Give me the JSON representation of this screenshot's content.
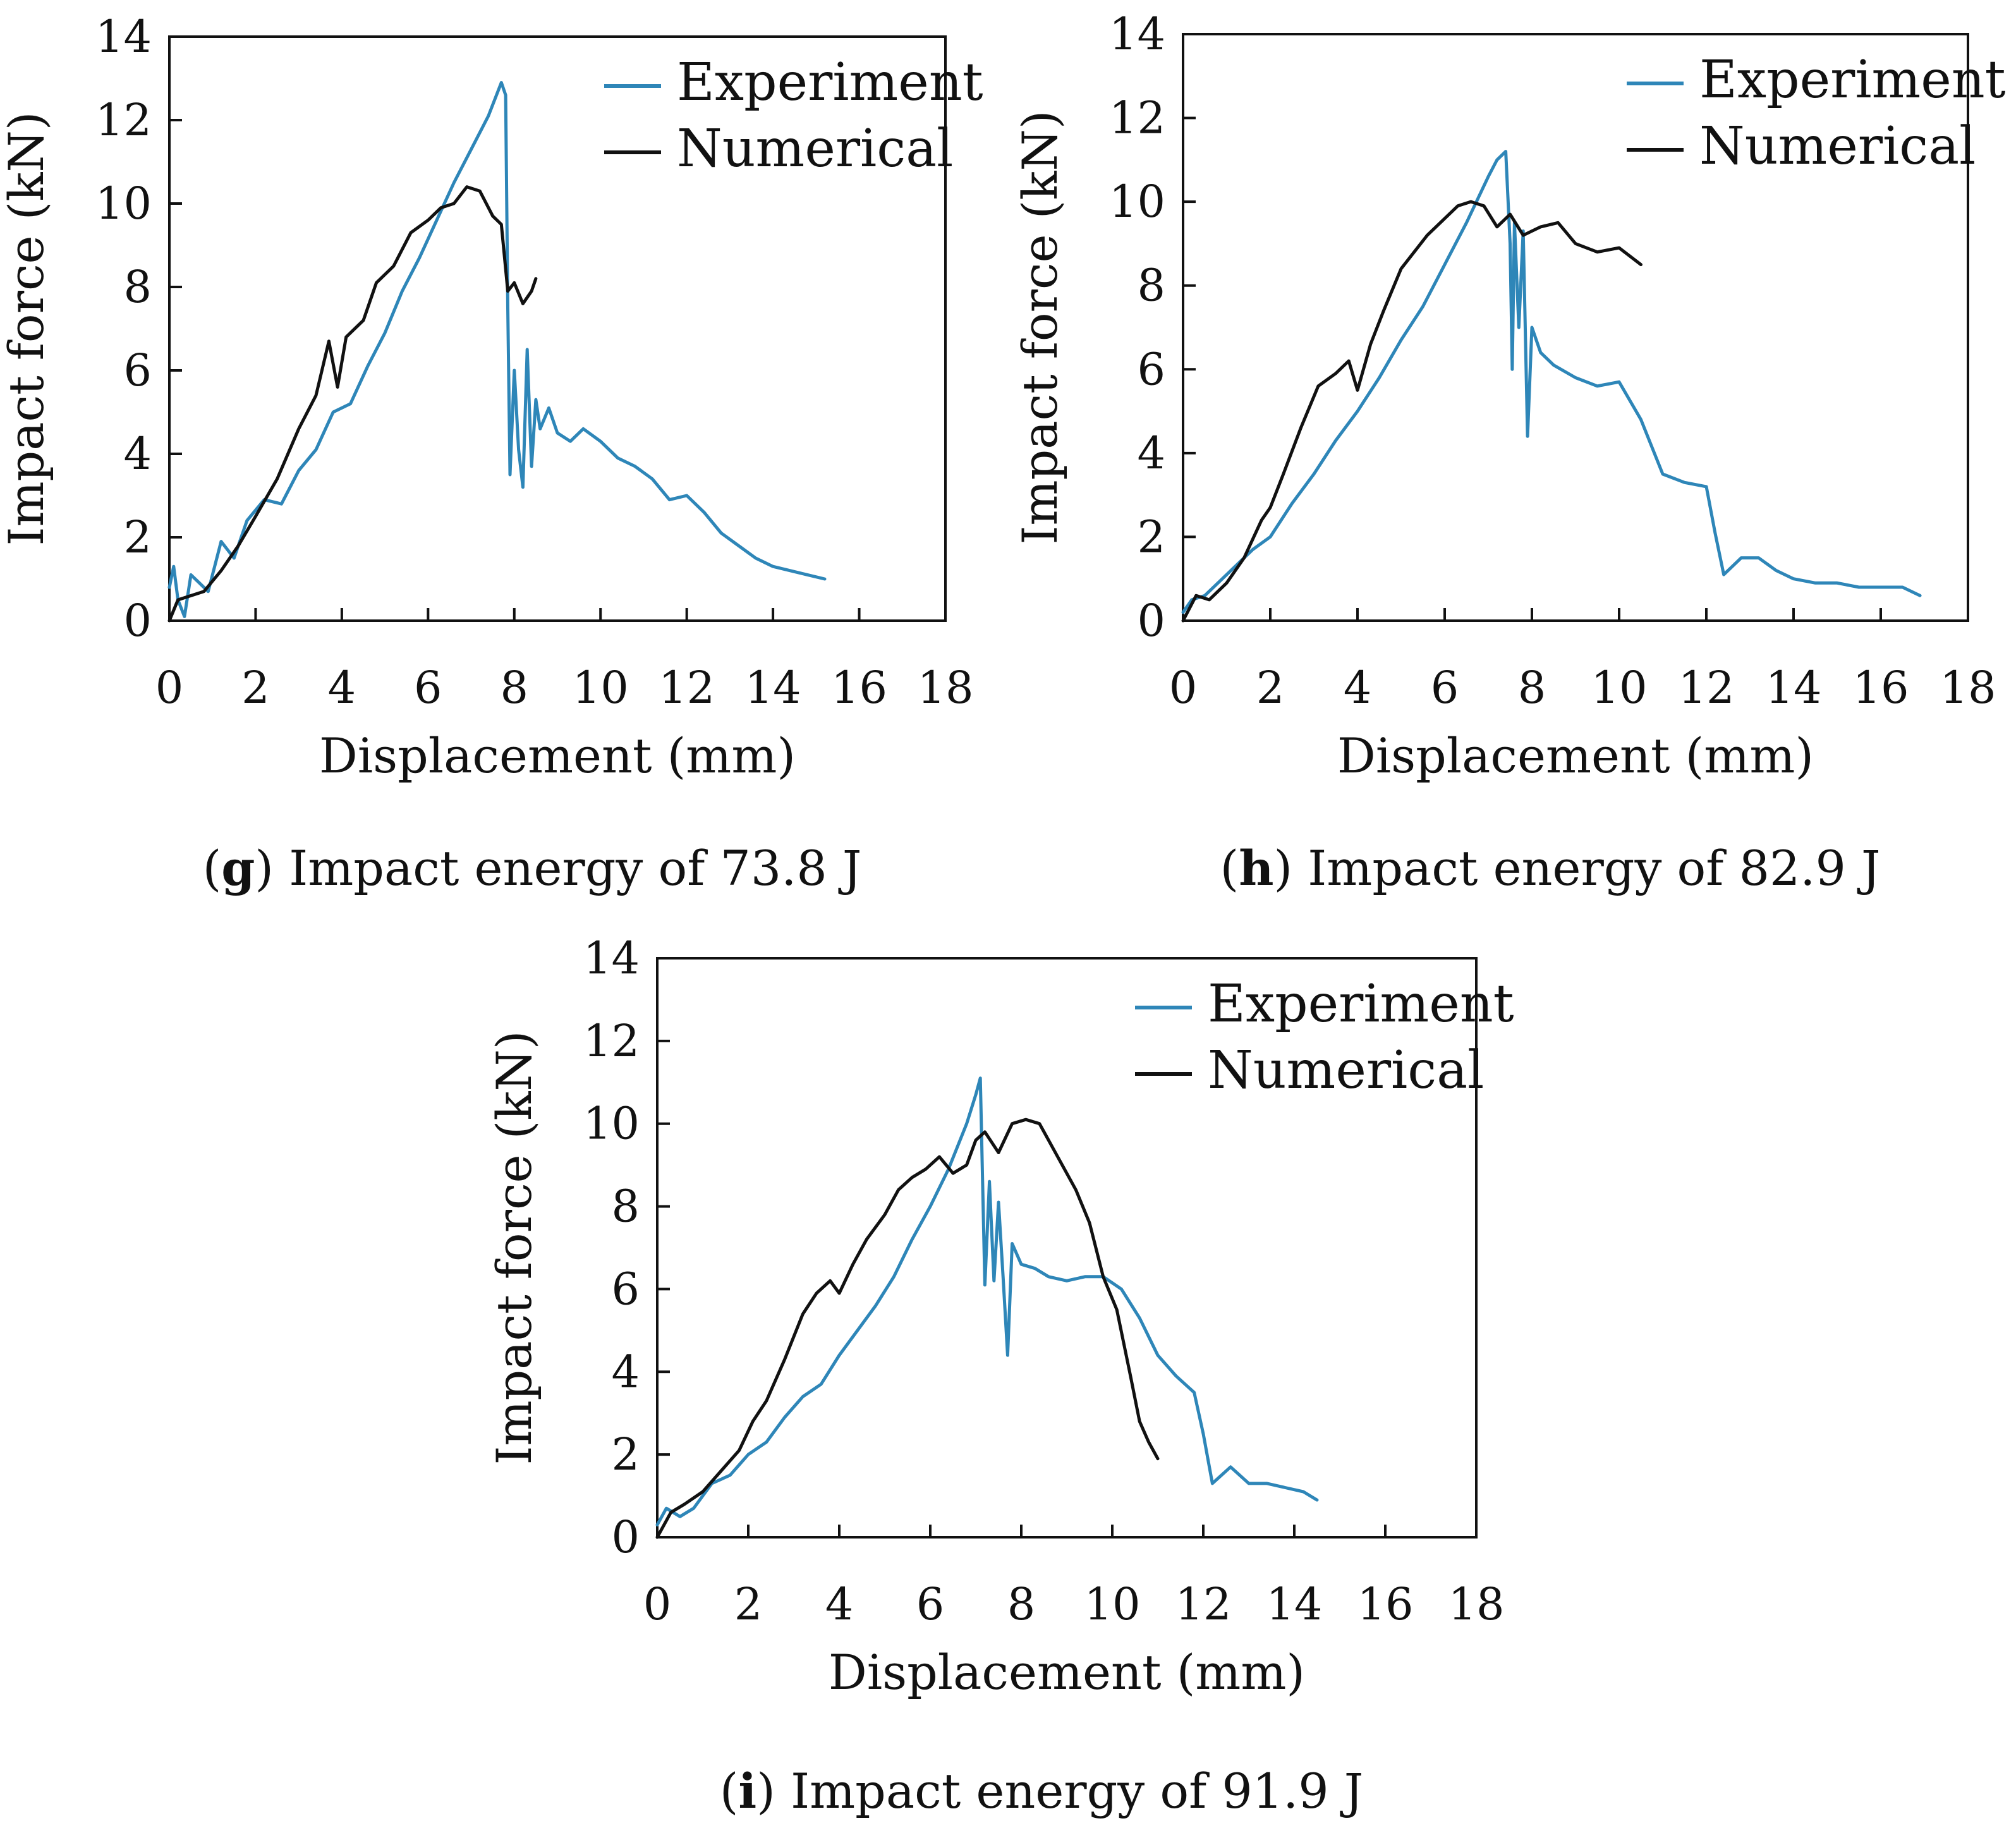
{
  "chart_data": [
    {
      "type": "line",
      "panel_letter": "g",
      "caption": "Impact energy of 73.8 J",
      "xlabel": "Displacement (mm)",
      "ylabel": "Impact force (kN)",
      "xlim": [
        0,
        18
      ],
      "ylim": [
        0,
        14
      ],
      "xticks": [
        "0",
        "2",
        "4",
        "6",
        "8",
        "10",
        "12",
        "14",
        "16",
        "18"
      ],
      "yticks": [
        "0",
        "2",
        "4",
        "6",
        "8",
        "10",
        "12",
        "14"
      ],
      "legend_position": "top-right",
      "series": [
        {
          "name": "Experiment",
          "color": "#2E86B8",
          "x": [
            0,
            0.1,
            0.2,
            0.35,
            0.5,
            0.7,
            0.9,
            1.2,
            1.5,
            1.8,
            2.2,
            2.6,
            3,
            3.4,
            3.8,
            4.2,
            4.6,
            5,
            5.4,
            5.8,
            6.2,
            6.6,
            7,
            7.4,
            7.7,
            7.8,
            7.85,
            7.9,
            8,
            8.1,
            8.2,
            8.3,
            8.4,
            8.5,
            8.6,
            8.8,
            9,
            9.3,
            9.6,
            10,
            10.4,
            10.8,
            11.2,
            11.6,
            12,
            12.4,
            12.8,
            13.2,
            13.6,
            14,
            14.4,
            14.8,
            15.2
          ],
          "y": [
            0.8,
            1.3,
            0.5,
            0.1,
            1.1,
            0.9,
            0.7,
            1.9,
            1.5,
            2.4,
            2.9,
            2.8,
            3.6,
            4.1,
            5,
            5.2,
            6.1,
            6.9,
            7.9,
            8.7,
            9.6,
            10.5,
            11.3,
            12.1,
            12.9,
            12.6,
            7.5,
            3.5,
            6,
            4.1,
            3.2,
            6.5,
            3.7,
            5.3,
            4.6,
            5.1,
            4.5,
            4.3,
            4.6,
            4.3,
            3.9,
            3.7,
            3.4,
            2.9,
            3,
            2.6,
            2.1,
            1.8,
            1.5,
            1.3,
            1.2,
            1.1,
            1.0
          ]
        },
        {
          "name": "Numerical",
          "color": "#111111",
          "x": [
            0,
            0.2,
            0.5,
            0.8,
            1.2,
            1.6,
            2,
            2.5,
            3,
            3.4,
            3.7,
            3.9,
            4.1,
            4.5,
            4.8,
            5.2,
            5.6,
            6,
            6.3,
            6.6,
            6.9,
            7.2,
            7.5,
            7.7,
            7.85,
            8,
            8.2,
            8.4,
            8.5
          ],
          "y": [
            0,
            0.5,
            0.6,
            0.7,
            1.2,
            1.8,
            2.5,
            3.4,
            4.6,
            5.4,
            6.7,
            5.6,
            6.8,
            7.2,
            8.1,
            8.5,
            9.3,
            9.6,
            9.9,
            10,
            10.4,
            10.3,
            9.7,
            9.5,
            7.9,
            8.1,
            7.6,
            7.9,
            8.2
          ]
        }
      ]
    },
    {
      "type": "line",
      "panel_letter": "h",
      "caption": "Impact energy of 82.9 J",
      "xlabel": "Displacement (mm)",
      "ylabel": "Impact force (kN)",
      "xlim": [
        0,
        18
      ],
      "ylim": [
        0,
        14
      ],
      "xticks": [
        "0",
        "2",
        "4",
        "6",
        "8",
        "10",
        "12",
        "14",
        "16",
        "18"
      ],
      "yticks": [
        "0",
        "2",
        "4",
        "6",
        "8",
        "10",
        "12",
        "14"
      ],
      "legend_position": "top-right",
      "series": [
        {
          "name": "Experiment",
          "color": "#2E86B8",
          "x": [
            0,
            0.2,
            0.5,
            0.8,
            1.2,
            1.6,
            2,
            2.5,
            3,
            3.5,
            4,
            4.5,
            5,
            5.5,
            6,
            6.5,
            7,
            7.2,
            7.4,
            7.5,
            7.55,
            7.6,
            7.7,
            7.8,
            7.9,
            8,
            8.2,
            8.5,
            9,
            9.5,
            10,
            10.5,
            11,
            11.5,
            12,
            12.2,
            12.4,
            12.8,
            13.2,
            13.6,
            14,
            14.5,
            15,
            15.5,
            16,
            16.5,
            16.9
          ],
          "y": [
            0.2,
            0.5,
            0.6,
            0.9,
            1.3,
            1.7,
            2,
            2.8,
            3.5,
            4.3,
            5,
            5.8,
            6.7,
            7.5,
            8.5,
            9.5,
            10.6,
            11,
            11.2,
            9,
            6,
            9.5,
            7,
            9.3,
            4.4,
            7,
            6.4,
            6.1,
            5.8,
            5.6,
            5.7,
            4.8,
            3.5,
            3.3,
            3.2,
            2.1,
            1.1,
            1.5,
            1.5,
            1.2,
            1,
            0.9,
            0.9,
            0.8,
            0.8,
            0.8,
            0.6
          ]
        },
        {
          "name": "Numerical",
          "color": "#111111",
          "x": [
            0,
            0.3,
            0.6,
            1,
            1.4,
            1.8,
            2,
            2.3,
            2.7,
            3.1,
            3.5,
            3.8,
            4,
            4.3,
            4.6,
            5,
            5.3,
            5.6,
            6,
            6.3,
            6.6,
            6.9,
            7.2,
            7.5,
            7.8,
            8.2,
            8.6,
            9,
            9.5,
            10,
            10.5
          ],
          "y": [
            0,
            0.6,
            0.5,
            0.9,
            1.5,
            2.4,
            2.7,
            3.5,
            4.6,
            5.6,
            5.9,
            6.2,
            5.5,
            6.6,
            7.4,
            8.4,
            8.8,
            9.2,
            9.6,
            9.9,
            10,
            9.9,
            9.4,
            9.7,
            9.2,
            9.4,
            9.5,
            9,
            8.8,
            8.9,
            8.5
          ]
        }
      ]
    },
    {
      "type": "line",
      "panel_letter": "i",
      "caption": "Impact energy of 91.9 J",
      "xlabel": "Displacement (mm)",
      "ylabel": "Impact force (kN)",
      "xlim": [
        0,
        18
      ],
      "ylim": [
        0,
        14
      ],
      "xticks": [
        "0",
        "2",
        "4",
        "6",
        "8",
        "10",
        "12",
        "14",
        "16",
        "18"
      ],
      "yticks": [
        "0",
        "2",
        "4",
        "6",
        "8",
        "10",
        "12",
        "14"
      ],
      "legend_position": "top-right",
      "series": [
        {
          "name": "Experiment",
          "color": "#2E86B8",
          "x": [
            0,
            0.2,
            0.5,
            0.8,
            1.2,
            1.6,
            2,
            2.4,
            2.8,
            3.2,
            3.6,
            4,
            4.4,
            4.8,
            5.2,
            5.6,
            6,
            6.4,
            6.8,
            7,
            7.1,
            7.2,
            7.3,
            7.4,
            7.5,
            7.6,
            7.7,
            7.8,
            8,
            8.3,
            8.6,
            9,
            9.4,
            9.8,
            10.2,
            10.6,
            11,
            11.4,
            11.8,
            12,
            12.2,
            12.6,
            13,
            13.4,
            13.8,
            14.2,
            14.5
          ],
          "y": [
            0.3,
            0.7,
            0.5,
            0.7,
            1.3,
            1.5,
            2,
            2.3,
            2.9,
            3.4,
            3.7,
            4.4,
            5,
            5.6,
            6.3,
            7.2,
            8,
            8.9,
            10,
            10.7,
            11.1,
            6.1,
            8.6,
            6.2,
            8.1,
            6.3,
            4.4,
            7.1,
            6.6,
            6.5,
            6.3,
            6.2,
            6.3,
            6.3,
            6,
            5.3,
            4.4,
            3.9,
            3.5,
            2.5,
            1.3,
            1.7,
            1.3,
            1.3,
            1.2,
            1.1,
            0.9
          ]
        },
        {
          "name": "Numerical",
          "color": "#111111",
          "x": [
            0,
            0.3,
            0.6,
            1,
            1.4,
            1.8,
            2.1,
            2.4,
            2.8,
            3.2,
            3.5,
            3.8,
            4,
            4.3,
            4.6,
            5,
            5.3,
            5.6,
            5.9,
            6.2,
            6.5,
            6.8,
            7,
            7.2,
            7.5,
            7.8,
            8.1,
            8.4,
            8.8,
            9.2,
            9.5,
            9.8,
            10.1,
            10.4,
            10.6,
            10.8,
            11
          ],
          "y": [
            0,
            0.6,
            0.8,
            1.1,
            1.6,
            2.1,
            2.8,
            3.3,
            4.3,
            5.4,
            5.9,
            6.2,
            5.9,
            6.6,
            7.2,
            7.8,
            8.4,
            8.7,
            8.9,
            9.2,
            8.8,
            9,
            9.6,
            9.8,
            9.3,
            10,
            10.1,
            10,
            9.2,
            8.4,
            7.6,
            6.3,
            5.5,
            3.9,
            2.8,
            2.3,
            1.9
          ]
        }
      ]
    }
  ]
}
